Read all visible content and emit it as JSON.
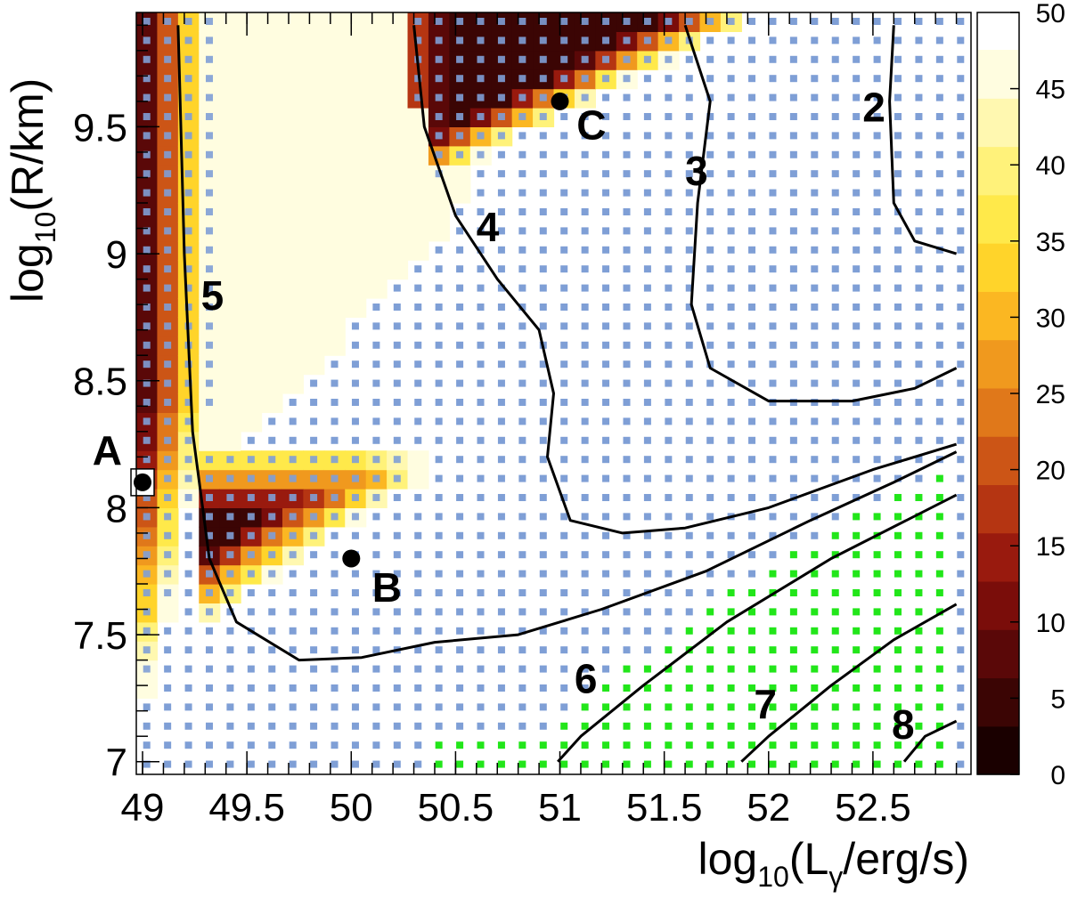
{
  "chart_data": {
    "type": "heatmap",
    "xlabel": {
      "base": "log",
      "sub": "10",
      "main": "(L",
      "sub2": "γ",
      "tail": "/erg/s)"
    },
    "ylabel": {
      "base": "log",
      "sub": "10",
      "main": "(R/km)"
    },
    "xlim": [
      48.97,
      52.97
    ],
    "ylim": [
      6.95,
      9.95
    ],
    "x_ticks": [
      49,
      49.5,
      50,
      50.5,
      51,
      51.5,
      52,
      52.5
    ],
    "x_tick_labels": [
      "49",
      "49.5",
      "50",
      "50.5",
      "51",
      "51.5",
      "52",
      "52.5"
    ],
    "y_ticks": [
      7,
      7.5,
      8,
      8.5,
      9,
      9.5
    ],
    "y_tick_labels": [
      "7",
      "7.5",
      "8",
      "8.5",
      "9",
      "9.5"
    ],
    "colorbar": {
      "min": 0,
      "max": 50,
      "ticks": [
        0,
        5,
        10,
        15,
        20,
        25,
        30,
        35,
        40,
        45,
        50
      ],
      "tick_labels": [
        "0",
        "5",
        "10",
        "15",
        "20",
        "25",
        "30",
        "35",
        "40",
        "45",
        "50"
      ],
      "palette": [
        "#1a0000",
        "#3b0504",
        "#5a0808",
        "#7a0d0a",
        "#991a0e",
        "#b53512",
        "#cc5516",
        "#e0781a",
        "#f0991e",
        "#fbb722",
        "#ffd42a",
        "#ffe94a",
        "#fff27a",
        "#fff8b0",
        "#fffde0"
      ]
    },
    "markers": {
      "blue": "#7f9fd6",
      "green": "#22e61a"
    },
    "contours": [
      {
        "label": "2",
        "label_at": [
          52.45,
          9.52
        ],
        "points": [
          [
            52.6,
            9.9
          ],
          [
            52.58,
            9.6
          ],
          [
            52.6,
            9.2
          ],
          [
            52.7,
            9.05
          ],
          [
            52.9,
            9.0
          ]
        ]
      },
      {
        "label": "3",
        "label_at": [
          51.6,
          9.27
        ],
        "points": [
          [
            51.6,
            9.9
          ],
          [
            51.72,
            9.6
          ],
          [
            51.66,
            9.2
          ],
          [
            51.63,
            8.8
          ],
          [
            51.72,
            8.55
          ],
          [
            52.0,
            8.42
          ],
          [
            52.4,
            8.42
          ],
          [
            52.7,
            8.47
          ],
          [
            52.9,
            8.55
          ]
        ]
      },
      {
        "label": "4",
        "label_at": [
          50.6,
          9.05
        ],
        "points": [
          [
            50.3,
            9.9
          ],
          [
            50.35,
            9.5
          ],
          [
            50.5,
            9.15
          ],
          [
            50.7,
            8.9
          ],
          [
            50.9,
            8.7
          ],
          [
            50.97,
            8.45
          ],
          [
            50.94,
            8.2
          ],
          [
            51.05,
            7.95
          ],
          [
            51.3,
            7.9
          ],
          [
            51.6,
            7.92
          ],
          [
            52.0,
            8.0
          ],
          [
            52.5,
            8.15
          ],
          [
            52.9,
            8.25
          ]
        ]
      },
      {
        "label": "5",
        "label_at": [
          49.28,
          8.78
        ],
        "points": [
          [
            49.17,
            9.9
          ],
          [
            49.2,
            9.0
          ],
          [
            49.24,
            8.3
          ],
          [
            49.32,
            7.8
          ],
          [
            49.45,
            7.55
          ],
          [
            49.75,
            7.4
          ],
          [
            50.05,
            7.41
          ],
          [
            50.4,
            7.47
          ],
          [
            50.8,
            7.5
          ],
          [
            51.2,
            7.6
          ],
          [
            51.7,
            7.75
          ],
          [
            52.2,
            7.95
          ],
          [
            52.6,
            8.1
          ],
          [
            52.9,
            8.22
          ]
        ]
      },
      {
        "label": "6",
        "label_at": [
          51.07,
          7.27
        ],
        "points": [
          [
            50.99,
            7.0
          ],
          [
            51.1,
            7.1
          ],
          [
            51.4,
            7.3
          ],
          [
            51.8,
            7.55
          ],
          [
            52.3,
            7.8
          ],
          [
            52.9,
            8.05
          ]
        ]
      },
      {
        "label": "7",
        "label_at": [
          51.93,
          7.17
        ],
        "points": [
          [
            51.87,
            7.0
          ],
          [
            52.0,
            7.1
          ],
          [
            52.3,
            7.3
          ],
          [
            52.6,
            7.48
          ],
          [
            52.9,
            7.62
          ]
        ]
      },
      {
        "label": "8",
        "label_at": [
          52.59,
          7.09
        ],
        "points": [
          [
            52.65,
            7.0
          ],
          [
            52.75,
            7.1
          ],
          [
            52.9,
            7.16
          ]
        ]
      }
    ],
    "points": [
      {
        "label": "A",
        "x": 49.0,
        "y": 8.1,
        "label_at": [
          48.76,
          8.17
        ]
      },
      {
        "label": "B",
        "x": 50.0,
        "y": 7.8,
        "label_at": [
          50.1,
          7.63
        ]
      },
      {
        "label": "C",
        "x": 51.0,
        "y": 9.6,
        "label_at": [
          51.08,
          9.45
        ]
      }
    ]
  }
}
